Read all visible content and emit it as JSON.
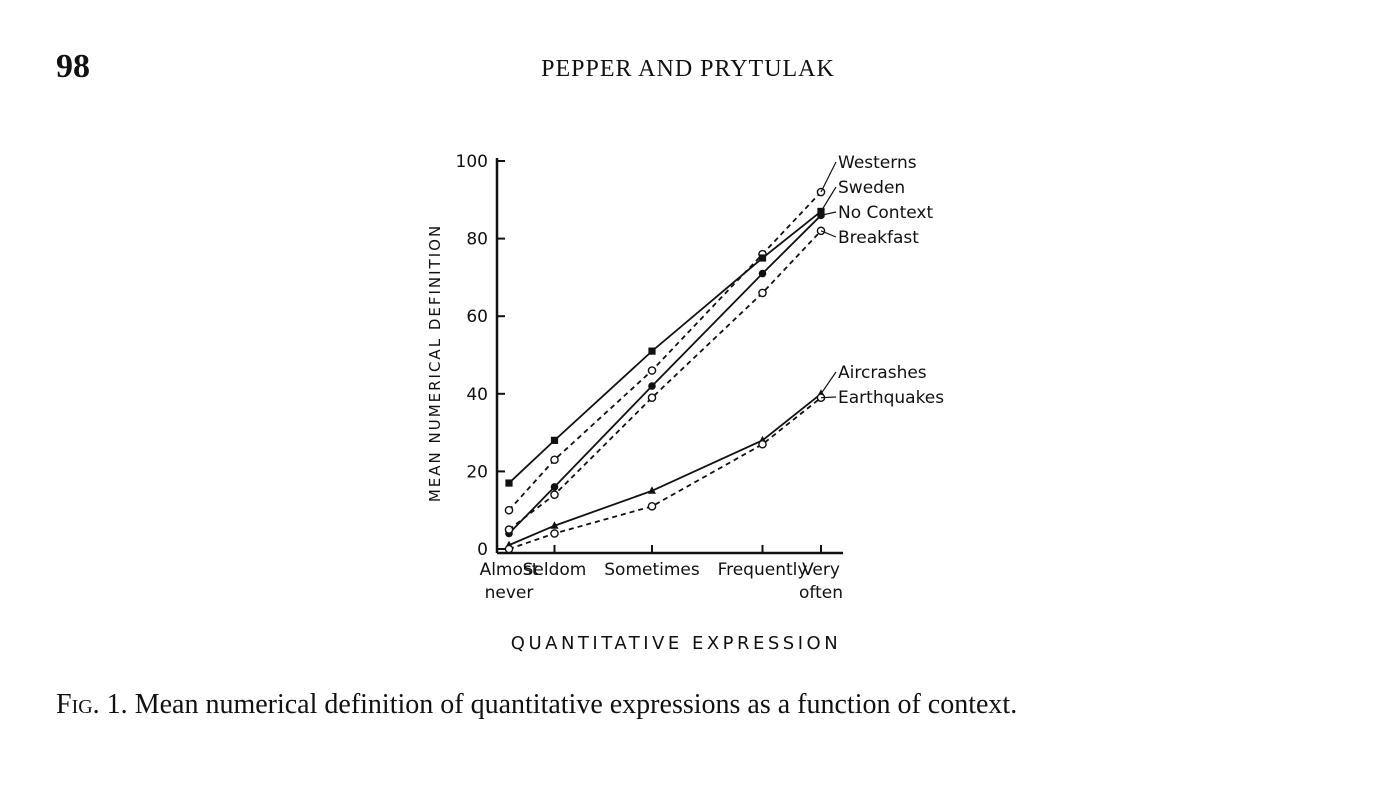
{
  "page": {
    "number": "98",
    "running_head": "PEPPER AND PRYTULAK"
  },
  "caption": {
    "label": "Fig. 1.",
    "text": "Mean numerical definition of quantitative expressions as a function of context."
  },
  "chart_data": {
    "type": "line",
    "title": "",
    "xlabel": "QUANTITATIVE EXPRESSION",
    "ylabel": "MEAN NUMERICAL DEFINITION",
    "categories": [
      "Almost never",
      "Seldom",
      "Sometimes",
      "Frequently",
      "Very often"
    ],
    "category_lines": [
      [
        "Almost",
        "never"
      ],
      [
        "Seldom"
      ],
      [
        "Sometimes"
      ],
      [
        "Frequently"
      ],
      [
        "Very",
        "often"
      ]
    ],
    "category_positions": [
      0,
      0.7,
      2.2,
      3.9,
      4.8
    ],
    "ylim": [
      0,
      100
    ],
    "yticks": [
      0,
      20,
      40,
      60,
      80,
      100
    ],
    "grid": false,
    "legend": "labels at right end of lines",
    "series": [
      {
        "name": "Westerns",
        "style": "dashed",
        "marker": "open-circle",
        "values": [
          10,
          23,
          46,
          76,
          92
        ]
      },
      {
        "name": "Sweden",
        "style": "solid",
        "marker": "filled-square",
        "values": [
          17,
          28,
          51,
          75,
          87
        ]
      },
      {
        "name": "No Context",
        "style": "solid",
        "marker": "filled-circle",
        "values": [
          4,
          16,
          42,
          71,
          86
        ]
      },
      {
        "name": "Breakfast",
        "style": "dashed",
        "marker": "open-circle",
        "values": [
          5,
          14,
          39,
          66,
          82
        ]
      },
      {
        "name": "Aircrashes",
        "style": "solid",
        "marker": "filled-triangle",
        "values": [
          1,
          6,
          15,
          28,
          40
        ]
      },
      {
        "name": "Earthquakes",
        "style": "dashed",
        "marker": "open-circle",
        "values": [
          0,
          4,
          11,
          27,
          39
        ]
      }
    ]
  }
}
